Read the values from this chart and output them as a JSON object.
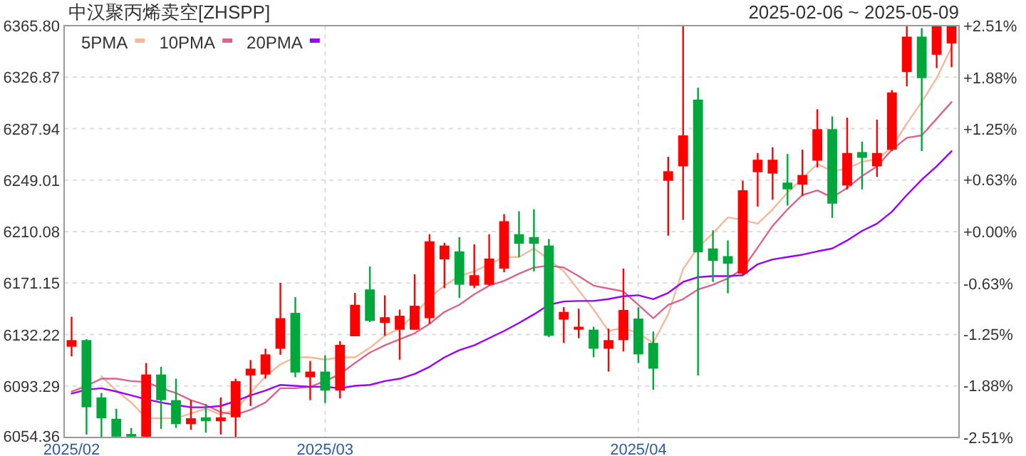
{
  "chart_data": {
    "type": "candlestick",
    "title": "中汉聚丙烯卖空[ZHSPP]",
    "subtitle": "2025-02-06 ~ 2025-05-09",
    "categories": [
      "2025/02",
      null,
      null,
      null,
      null,
      null,
      null,
      null,
      null,
      null,
      null,
      null,
      null,
      null,
      null,
      null,
      null,
      "2025/03",
      null,
      null,
      null,
      null,
      null,
      null,
      null,
      null,
      null,
      null,
      null,
      null,
      null,
      null,
      null,
      null,
      null,
      null,
      null,
      null,
      "2025/04",
      null,
      null,
      null,
      null,
      null,
      null,
      null,
      null,
      null,
      null,
      null,
      null,
      null,
      null,
      null,
      null,
      null,
      null,
      null,
      null,
      null
    ],
    "ohlc": [
      [
        6123.0,
        6145.7,
        6115.7,
        6128.0
      ],
      [
        6128.0,
        6128.7,
        6056.6,
        6077.2
      ],
      [
        6084.7,
        6088.0,
        6054.4,
        6068.9
      ],
      [
        6068.5,
        6076.1,
        6054.4,
        6055.0
      ],
      [
        6057.0,
        6061.5,
        6054.4,
        6055.0
      ],
      [
        6055.0,
        6110.7,
        6054.4,
        6102.0
      ],
      [
        6102.0,
        6107.8,
        6060.9,
        6082.6
      ],
      [
        6082.6,
        6098.8,
        6061.6,
        6064.5
      ],
      [
        6064.5,
        6082.6,
        6060.2,
        6068.9
      ],
      [
        6069.6,
        6079.7,
        6058.0,
        6066.7
      ],
      [
        6066.7,
        6084.7,
        6056.6,
        6069.6
      ],
      [
        6069.6,
        6098.8,
        6054.4,
        6097.0
      ],
      [
        6101.3,
        6112.9,
        6078.2,
        6106.4
      ],
      [
        6102.0,
        6121.5,
        6098.8,
        6117.2
      ],
      [
        6121.5,
        6171.3,
        6116.9,
        6144.6
      ],
      [
        6148.6,
        6160.5,
        6099.9,
        6103.5
      ],
      [
        6099.9,
        6112.2,
        6082.6,
        6104.2
      ],
      [
        6104.2,
        6116.5,
        6080.4,
        6089.8
      ],
      [
        6089.8,
        6127.3,
        6084.0,
        6124.4
      ],
      [
        6130.9,
        6163.7,
        6130.9,
        6154.7
      ],
      [
        6166.3,
        6183.6,
        6141.7,
        6142.5
      ],
      [
        6141.0,
        6161.9,
        6131.3,
        6145.3
      ],
      [
        6135.9,
        6151.1,
        6113.2,
        6146.4
      ],
      [
        6135.9,
        6177.8,
        6135.9,
        6154.0
      ],
      [
        6144.6,
        6208.1,
        6140.3,
        6202.7
      ],
      [
        6189.0,
        6201.6,
        6167.3,
        6199.5
      ],
      [
        6195.1,
        6205.9,
        6159.8,
        6169.9
      ],
      [
        6169.2,
        6200.5,
        6167.3,
        6177.1
      ],
      [
        6169.9,
        6208.1,
        6169.2,
        6189.7
      ],
      [
        6182.1,
        6223.3,
        6179.3,
        6217.9
      ],
      [
        6208.1,
        6225.4,
        6190.8,
        6200.9
      ],
      [
        6205.9,
        6226.9,
        6180.0,
        6200.9
      ],
      [
        6199.5,
        6204.5,
        6130.2,
        6131.3
      ],
      [
        6143.5,
        6152.9,
        6125.9,
        6149.3
      ],
      [
        6135.9,
        6151.8,
        6129.5,
        6138.1
      ],
      [
        6135.9,
        6138.1,
        6115.0,
        6121.5
      ],
      [
        6121.5,
        6136.7,
        6104.2,
        6128.0
      ],
      [
        6128.0,
        6182.1,
        6119.4,
        6150.8
      ],
      [
        6144.3,
        6152.9,
        6110.7,
        6117.2
      ],
      [
        6125.9,
        6134.5,
        6090.5,
        6106.4
      ],
      [
        6248.5,
        6266.6,
        6207.0,
        6255.7
      ],
      [
        6259.4,
        6365.8,
        6218.9,
        6282.8
      ],
      [
        6309.9,
        6318.9,
        6101.3,
        6194.4
      ],
      [
        6197.3,
        6211.0,
        6172.0,
        6187.9
      ],
      [
        6191.5,
        6203.4,
        6163.4,
        6185.8
      ],
      [
        6178.2,
        6248.5,
        6177.1,
        6241.3
      ],
      [
        6255.0,
        6269.5,
        6229.0,
        6264.4
      ],
      [
        6253.9,
        6273.8,
        6234.1,
        6264.4
      ],
      [
        6247.1,
        6268.7,
        6229.8,
        6242.0
      ],
      [
        6245.6,
        6272.0,
        6237.0,
        6252.9
      ],
      [
        6263.7,
        6302.6,
        6258.6,
        6287.5
      ],
      [
        6287.5,
        6297.2,
        6220.4,
        6231.2
      ],
      [
        6244.9,
        6296.2,
        6242.0,
        6269.5
      ],
      [
        6270.2,
        6278.1,
        6242.0,
        6265.9
      ],
      [
        6259.4,
        6294.7,
        6251.4,
        6269.5
      ],
      [
        6272.0,
        6317.1,
        6270.9,
        6315.3
      ],
      [
        6330.8,
        6365.8,
        6320.0,
        6357.5
      ],
      [
        6357.5,
        6364.0,
        6270.9,
        6326.1
      ],
      [
        6343.8,
        6365.8,
        6333.7,
        6365.8
      ],
      [
        6352.4,
        6365.8,
        6334.4,
        6365.8
      ]
    ],
    "colors": [
      "#ff0000",
      "#00a83c",
      "#00a83c",
      "#00a83c",
      "#00a83c",
      "#ff0000",
      "#00a83c",
      "#00a83c",
      "#ff0000",
      "#00a83c",
      "#ff0000",
      "#ff0000",
      "#ff0000",
      "#ff0000",
      "#ff0000",
      "#00a83c",
      "#ff0000",
      "#00a83c",
      "#ff0000",
      "#ff0000",
      "#00a83c",
      "#ff0000",
      "#ff0000",
      "#ff0000",
      "#ff0000",
      "#ff0000",
      "#00a83c",
      "#ff0000",
      "#ff0000",
      "#ff0000",
      "#00a83c",
      "#00a83c",
      "#00a83c",
      "#ff0000",
      "#ff0000",
      "#00a83c",
      "#ff0000",
      "#ff0000",
      "#00a83c",
      "#00a83c",
      "#ff0000",
      "#ff0000",
      "#00a83c",
      "#00a83c",
      "#00a83c",
      "#ff0000",
      "#ff0000",
      "#ff0000",
      "#00a83c",
      "#ff0000",
      "#ff0000",
      "#00a83c",
      "#ff0000",
      "#00a83c",
      "#ff0000",
      "#ff0000",
      "#ff0000",
      "#00a83c",
      "#ff0000",
      "#ff0000"
    ],
    "series": [
      {
        "name": "5PMA",
        "type": "line",
        "color": "#f5b898",
        "values": [
          null,
          null,
          6100.6,
          6089.8,
          6080.8,
          6068.9,
          6068.9,
          6068.9,
          6072.5,
          6076.1,
          6071.7,
          6075.3,
          6088.0,
          6100.6,
          6109.6,
          6115.0,
          6115.0,
          6113.2,
          6115.0,
          6115.0,
          6122.2,
          6131.3,
          6136.7,
          6147.5,
          6160.1,
          6169.2,
          6176.4,
          6180.0,
          6185.4,
          6190.8,
          6190.8,
          6197.3,
          6189.0,
          6180.0,
          6165.6,
          6151.1,
          6134.9,
          6137.4,
          6133.1,
          6125.9,
          6147.5,
          6181.8,
          6198.0,
          6208.8,
          6220.8,
          6218.9,
          6216.1,
          6226.9,
          6239.5,
          6250.3,
          6261.2,
          6255.7,
          6257.6,
          6262.9,
          6264.8,
          6273.8,
          6291.8,
          6308.1,
          6326.1,
          6349.6
        ]
      },
      {
        "name": "10PMA",
        "type": "line",
        "color": "#d9658a",
        "values": [
          6089.1,
          6093.4,
          6098.8,
          6098.8,
          6097.0,
          6096.3,
          6091.6,
          6088.0,
          6082.6,
          6078.9,
          6073.5,
          6071.7,
          6075.3,
          6080.8,
          6091.6,
          6091.6,
          6092.7,
          6097.0,
          6102.4,
          6110.7,
          6118.6,
          6124.1,
          6128.7,
          6133.1,
          6140.3,
          6149.3,
          6154.7,
          6162.7,
          6169.2,
          6172.8,
          6178.2,
          6182.9,
          6184.3,
          6182.9,
          6176.4,
          6169.2,
          6167.0,
          6164.8,
          6154.7,
          6144.6,
          6154.7,
          6159.0,
          6166.3,
          6169.9,
          6174.6,
          6181.8,
          6198.0,
          6214.3,
          6226.9,
          6237.7,
          6241.3,
          6235.9,
          6243.1,
          6252.1,
          6259.4,
          6272.0,
          6281.0,
          6282.8,
          6295.4,
          6308.1
        ]
      },
      {
        "name": "20PMA",
        "type": "line",
        "color": "#9b00ff",
        "values": [
          6087.6,
          6090.5,
          6091.6,
          6089.1,
          6086.2,
          6083.3,
          6080.8,
          6078.9,
          6077.2,
          6077.2,
          6078.2,
          6081.9,
          6086.2,
          6089.8,
          6094.1,
          6093.4,
          6092.7,
          6092.7,
          6091.6,
          6093.4,
          6094.1,
          6097.0,
          6098.8,
          6102.4,
          6107.8,
          6115.0,
          6120.4,
          6124.1,
          6129.5,
          6134.9,
          6141.0,
          6147.5,
          6154.7,
          6157.2,
          6157.6,
          6157.6,
          6159.0,
          6161.2,
          6161.9,
          6159.0,
          6163.7,
          6172.0,
          6175.6,
          6176.4,
          6176.4,
          6177.1,
          6185.4,
          6189.0,
          6190.8,
          6192.6,
          6195.1,
          6197.3,
          6203.4,
          6210.6,
          6216.1,
          6225.1,
          6237.7,
          6249.3,
          6259.4,
          6270.9
        ]
      }
    ],
    "ylim": [
      6054.36,
      6365.8
    ],
    "yticks": [
      {
        "value": 6054.36,
        "label": "6054.36"
      },
      {
        "value": 6093.29,
        "label": "6093.29"
      },
      {
        "value": 6132.22,
        "label": "6132.22"
      },
      {
        "value": 6171.15,
        "label": "6171.15"
      },
      {
        "value": 6210.08,
        "label": "6210.08"
      },
      {
        "value": 6249.01,
        "label": "6249.01"
      },
      {
        "value": 6287.94,
        "label": "6287.94"
      },
      {
        "value": 6326.87,
        "label": "6326.87"
      },
      {
        "value": 6365.8,
        "label": "6365.80"
      }
    ],
    "y2lim": [
      -2.51,
      2.51
    ],
    "y2ticks": [
      {
        "value": -2.51,
        "label": "-2.51%"
      },
      {
        "value": -1.88,
        "label": "-1.88%"
      },
      {
        "value": -1.25,
        "label": "-1.25%"
      },
      {
        "value": -0.63,
        "label": "-0.63%"
      },
      {
        "value": 0,
        "label": "+0.00%"
      },
      {
        "value": 0.63,
        "label": "+0.63%"
      },
      {
        "value": 1.25,
        "label": "+1.25%"
      },
      {
        "value": 1.88,
        "label": "+1.88%"
      },
      {
        "value": 2.51,
        "label": "+2.51%"
      }
    ],
    "grid": true,
    "legend": "top left"
  }
}
